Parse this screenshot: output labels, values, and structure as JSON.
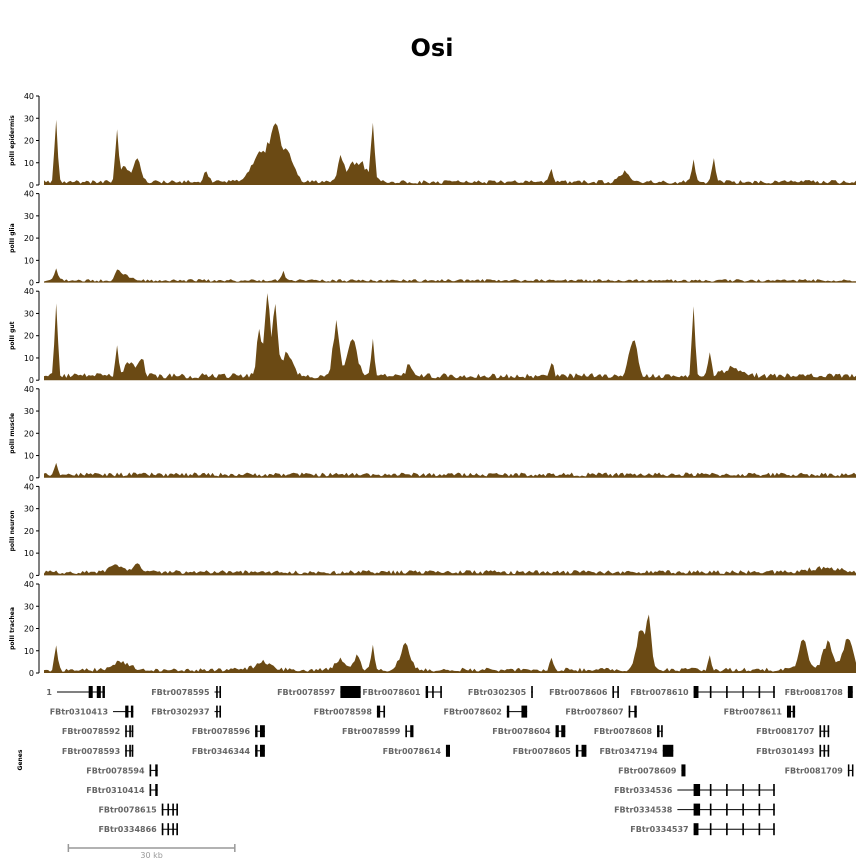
{
  "chart_data": {
    "type": "area",
    "title": "Osi",
    "color": "#6b4a14",
    "ylim": [
      0,
      40
    ],
    "yticks": [
      0,
      10,
      20,
      30,
      40
    ],
    "n_bins": 200,
    "tracks": [
      {
        "name": "polII epidermis",
        "baseline": 1.4,
        "peaks": [
          {
            "x": 0.015,
            "h": 29,
            "w": 0.002
          },
          {
            "x": 0.09,
            "h": 23,
            "w": 0.002
          },
          {
            "x": 0.1,
            "h": 7,
            "w": 0.006
          },
          {
            "x": 0.115,
            "h": 11,
            "w": 0.004
          },
          {
            "x": 0.2,
            "h": 5,
            "w": 0.003
          },
          {
            "x": 0.27,
            "h": 16,
            "w": 0.012
          },
          {
            "x": 0.285,
            "h": 21,
            "w": 0.005
          },
          {
            "x": 0.3,
            "h": 14,
            "w": 0.008
          },
          {
            "x": 0.365,
            "h": 10,
            "w": 0.003
          },
          {
            "x": 0.385,
            "h": 11,
            "w": 0.012
          },
          {
            "x": 0.405,
            "h": 26,
            "w": 0.002
          },
          {
            "x": 0.625,
            "h": 7,
            "w": 0.002
          },
          {
            "x": 0.715,
            "h": 5,
            "w": 0.006
          },
          {
            "x": 0.8,
            "h": 12,
            "w": 0.002
          },
          {
            "x": 0.825,
            "h": 14,
            "w": 0.002
          }
        ]
      },
      {
        "name": "polII glia",
        "baseline": 1.0,
        "peaks": [
          {
            "x": 0.015,
            "h": 7,
            "w": 0.002
          },
          {
            "x": 0.09,
            "h": 5,
            "w": 0.003
          },
          {
            "x": 0.1,
            "h": 3,
            "w": 0.006
          },
          {
            "x": 0.295,
            "h": 5,
            "w": 0.002
          }
        ]
      },
      {
        "name": "polII gut",
        "baseline": 2.0,
        "peaks": [
          {
            "x": 0.015,
            "h": 34,
            "w": 0.002
          },
          {
            "x": 0.09,
            "h": 14,
            "w": 0.002
          },
          {
            "x": 0.105,
            "h": 7,
            "w": 0.006
          },
          {
            "x": 0.12,
            "h": 10,
            "w": 0.003
          },
          {
            "x": 0.265,
            "h": 24,
            "w": 0.003
          },
          {
            "x": 0.275,
            "h": 39,
            "w": 0.003
          },
          {
            "x": 0.285,
            "h": 35,
            "w": 0.003
          },
          {
            "x": 0.3,
            "h": 12,
            "w": 0.006
          },
          {
            "x": 0.36,
            "h": 25,
            "w": 0.004
          },
          {
            "x": 0.38,
            "h": 19,
            "w": 0.006
          },
          {
            "x": 0.405,
            "h": 18,
            "w": 0.002
          },
          {
            "x": 0.45,
            "h": 5,
            "w": 0.004
          },
          {
            "x": 0.625,
            "h": 8,
            "w": 0.002
          },
          {
            "x": 0.725,
            "h": 19,
            "w": 0.005
          },
          {
            "x": 0.8,
            "h": 33,
            "w": 0.002
          },
          {
            "x": 0.82,
            "h": 12,
            "w": 0.002
          },
          {
            "x": 0.85,
            "h": 4,
            "w": 0.012
          }
        ]
      },
      {
        "name": "polII muscle",
        "baseline": 1.5,
        "peaks": [
          {
            "x": 0.015,
            "h": 7,
            "w": 0.002
          }
        ]
      },
      {
        "name": "polII neuron",
        "baseline": 1.5,
        "peaks": [
          {
            "x": 0.09,
            "h": 4,
            "w": 0.008
          },
          {
            "x": 0.115,
            "h": 4,
            "w": 0.004
          },
          {
            "x": 0.96,
            "h": 2,
            "w": 0.02
          }
        ]
      },
      {
        "name": "polII trachea",
        "baseline": 1.5,
        "peaks": [
          {
            "x": 0.015,
            "h": 15,
            "w": 0.002
          },
          {
            "x": 0.095,
            "h": 4,
            "w": 0.01
          },
          {
            "x": 0.27,
            "h": 4,
            "w": 0.01
          },
          {
            "x": 0.365,
            "h": 5,
            "w": 0.006
          },
          {
            "x": 0.385,
            "h": 7,
            "w": 0.004
          },
          {
            "x": 0.405,
            "h": 13,
            "w": 0.002
          },
          {
            "x": 0.445,
            "h": 13,
            "w": 0.006
          },
          {
            "x": 0.625,
            "h": 6,
            "w": 0.002
          },
          {
            "x": 0.735,
            "h": 22,
            "w": 0.005
          },
          {
            "x": 0.745,
            "h": 24,
            "w": 0.003
          },
          {
            "x": 0.82,
            "h": 6,
            "w": 0.002
          },
          {
            "x": 0.935,
            "h": 17,
            "w": 0.005
          },
          {
            "x": 0.965,
            "h": 14,
            "w": 0.006
          },
          {
            "x": 0.99,
            "h": 17,
            "w": 0.006
          }
        ]
      }
    ],
    "genes_label": "Genes",
    "genes": [
      {
        "label": "1",
        "row": 0,
        "s": 0.016,
        "e": 0.075,
        "exons": [
          [
            0.055,
            0.06
          ],
          [
            0.065,
            0.07
          ],
          [
            0.072,
            0.075
          ]
        ]
      },
      {
        "label": "FBtr0078595",
        "row": 0,
        "s": 0.21,
        "e": 0.218,
        "exons": [
          [
            0.212,
            0.214
          ],
          [
            0.216,
            0.218
          ]
        ]
      },
      {
        "label": "FBtr0078597",
        "row": 0,
        "s": 0.365,
        "e": 0.39,
        "exons": [
          [
            0.365,
            0.39
          ]
        ]
      },
      {
        "label": "FBtr0078601",
        "row": 0,
        "s": 0.47,
        "e": 0.49,
        "exons": [
          [
            0.47,
            0.473
          ],
          [
            0.478,
            0.48
          ],
          [
            0.488,
            0.49
          ]
        ]
      },
      {
        "label": "FBtr0302305",
        "row": 0,
        "s": 0.6,
        "e": 0.602,
        "exons": [
          [
            0.6,
            0.602
          ]
        ]
      },
      {
        "label": "FBtr0078606",
        "row": 0,
        "s": 0.7,
        "e": 0.708,
        "exons": [
          [
            0.7,
            0.702
          ],
          [
            0.706,
            0.708
          ]
        ]
      },
      {
        "label": "FBtr0078610",
        "row": 0,
        "s": 0.8,
        "e": 0.9,
        "exons": [
          [
            0.8,
            0.806
          ],
          [
            0.82,
            0.822
          ],
          [
            0.84,
            0.842
          ],
          [
            0.86,
            0.862
          ],
          [
            0.88,
            0.882
          ],
          [
            0.898,
            0.9
          ]
        ]
      },
      {
        "label": "FBtr0081708",
        "row": 0,
        "s": 0.99,
        "e": 0.996,
        "exons": [
          [
            0.99,
            0.996
          ]
        ]
      },
      {
        "label": "FBtr0310413",
        "row": 1,
        "s": 0.085,
        "e": 0.11,
        "exons": [
          [
            0.1,
            0.104
          ],
          [
            0.107,
            0.11
          ]
        ]
      },
      {
        "label": "FBtr0302937",
        "row": 1,
        "s": 0.21,
        "e": 0.218,
        "exons": [
          [
            0.212,
            0.214
          ],
          [
            0.216,
            0.218
          ]
        ]
      },
      {
        "label": "FBtr0078598",
        "row": 1,
        "s": 0.41,
        "e": 0.42,
        "exons": [
          [
            0.41,
            0.414
          ],
          [
            0.418,
            0.42
          ]
        ]
      },
      {
        "label": "FBtr0078602",
        "row": 1,
        "s": 0.57,
        "e": 0.595,
        "exons": [
          [
            0.57,
            0.573
          ],
          [
            0.588,
            0.595
          ]
        ]
      },
      {
        "label": "FBtr0078607",
        "row": 1,
        "s": 0.72,
        "e": 0.73,
        "exons": [
          [
            0.72,
            0.722
          ],
          [
            0.727,
            0.73
          ]
        ]
      },
      {
        "label": "FBtr0078611",
        "row": 1,
        "s": 0.915,
        "e": 0.925,
        "exons": [
          [
            0.915,
            0.92
          ],
          [
            0.922,
            0.925
          ]
        ]
      },
      {
        "label": "FBtr0078592",
        "row": 2,
        "s": 0.1,
        "e": 0.11,
        "exons": [
          [
            0.1,
            0.102
          ],
          [
            0.105,
            0.107
          ],
          [
            0.108,
            0.11
          ]
        ]
      },
      {
        "label": "FBtr0078596",
        "row": 2,
        "s": 0.26,
        "e": 0.272,
        "exons": [
          [
            0.26,
            0.263
          ],
          [
            0.266,
            0.272
          ]
        ]
      },
      {
        "label": "FBtr0078599",
        "row": 2,
        "s": 0.445,
        "e": 0.455,
        "exons": [
          [
            0.445,
            0.447
          ],
          [
            0.451,
            0.455
          ]
        ]
      },
      {
        "label": "FBtr0078604",
        "row": 2,
        "s": 0.63,
        "e": 0.642,
        "exons": [
          [
            0.63,
            0.634
          ],
          [
            0.637,
            0.642
          ]
        ]
      },
      {
        "label": "FBtr0078608",
        "row": 2,
        "s": 0.755,
        "e": 0.762,
        "exons": [
          [
            0.755,
            0.758
          ],
          [
            0.76,
            0.762
          ]
        ]
      },
      {
        "label": "FBtr0081707",
        "row": 2,
        "s": 0.955,
        "e": 0.967,
        "exons": [
          [
            0.955,
            0.957
          ],
          [
            0.96,
            0.962
          ],
          [
            0.965,
            0.967
          ]
        ]
      },
      {
        "label": "FBtr0078593",
        "row": 3,
        "s": 0.1,
        "e": 0.11,
        "exons": [
          [
            0.1,
            0.102
          ],
          [
            0.105,
            0.107
          ],
          [
            0.108,
            0.11
          ]
        ]
      },
      {
        "label": "FBtr0346344",
        "row": 3,
        "s": 0.26,
        "e": 0.272,
        "exons": [
          [
            0.26,
            0.263
          ],
          [
            0.266,
            0.272
          ]
        ]
      },
      {
        "label": "FBtr0078614",
        "row": 3,
        "s": 0.495,
        "e": 0.5,
        "exons": [
          [
            0.495,
            0.5
          ]
        ]
      },
      {
        "label": "FBtr0078605",
        "row": 3,
        "s": 0.655,
        "e": 0.668,
        "exons": [
          [
            0.655,
            0.658
          ],
          [
            0.662,
            0.668
          ]
        ]
      },
      {
        "label": "FBtr0347194",
        "row": 3,
        "s": 0.762,
        "e": 0.775,
        "exons": [
          [
            0.762,
            0.775
          ]
        ]
      },
      {
        "label": "FBtr0301493",
        "row": 3,
        "s": 0.955,
        "e": 0.967,
        "exons": [
          [
            0.955,
            0.957
          ],
          [
            0.96,
            0.962
          ],
          [
            0.965,
            0.967
          ]
        ]
      },
      {
        "label": "FBtr0078594",
        "row": 4,
        "s": 0.13,
        "e": 0.14,
        "exons": [
          [
            0.13,
            0.132
          ],
          [
            0.137,
            0.14
          ]
        ]
      },
      {
        "label": "FBtr0078609",
        "row": 4,
        "s": 0.785,
        "e": 0.79,
        "exons": [
          [
            0.785,
            0.79
          ]
        ]
      },
      {
        "label": "FBtr0081709",
        "row": 4,
        "s": 0.99,
        "e": 0.996,
        "exons": [
          [
            0.99,
            0.991
          ],
          [
            0.995,
            0.996
          ]
        ]
      },
      {
        "label": "FBtr0310414",
        "row": 5,
        "s": 0.13,
        "e": 0.14,
        "exons": [
          [
            0.13,
            0.132
          ],
          [
            0.137,
            0.14
          ]
        ]
      },
      {
        "label": "FBtr0334536",
        "row": 5,
        "s": 0.78,
        "e": 0.9,
        "exons": [
          [
            0.8,
            0.808
          ],
          [
            0.82,
            0.822
          ],
          [
            0.84,
            0.842
          ],
          [
            0.86,
            0.862
          ],
          [
            0.88,
            0.882
          ],
          [
            0.898,
            0.9
          ]
        ]
      },
      {
        "label": "FBtr0078615",
        "row": 6,
        "s": 0.145,
        "e": 0.165,
        "exons": [
          [
            0.145,
            0.147
          ],
          [
            0.152,
            0.154
          ],
          [
            0.158,
            0.16
          ],
          [
            0.163,
            0.165
          ]
        ]
      },
      {
        "label": "FBtr0334538",
        "row": 6,
        "s": 0.78,
        "e": 0.9,
        "exons": [
          [
            0.8,
            0.808
          ],
          [
            0.82,
            0.822
          ],
          [
            0.84,
            0.842
          ],
          [
            0.86,
            0.862
          ],
          [
            0.88,
            0.882
          ],
          [
            0.898,
            0.9
          ]
        ]
      },
      {
        "label": "FBtr0334866",
        "row": 7,
        "s": 0.145,
        "e": 0.165,
        "exons": [
          [
            0.145,
            0.147
          ],
          [
            0.152,
            0.154
          ],
          [
            0.158,
            0.16
          ],
          [
            0.163,
            0.165
          ]
        ]
      },
      {
        "label": "FBtr0334537",
        "row": 7,
        "s": 0.8,
        "e": 0.9,
        "exons": [
          [
            0.8,
            0.806
          ],
          [
            0.82,
            0.822
          ],
          [
            0.84,
            0.842
          ],
          [
            0.86,
            0.862
          ],
          [
            0.88,
            0.882
          ],
          [
            0.898,
            0.9
          ]
        ]
      }
    ],
    "scale_bar_label": "30 kb",
    "scale_bar_fraction": [
      0.03,
      0.235
    ]
  }
}
